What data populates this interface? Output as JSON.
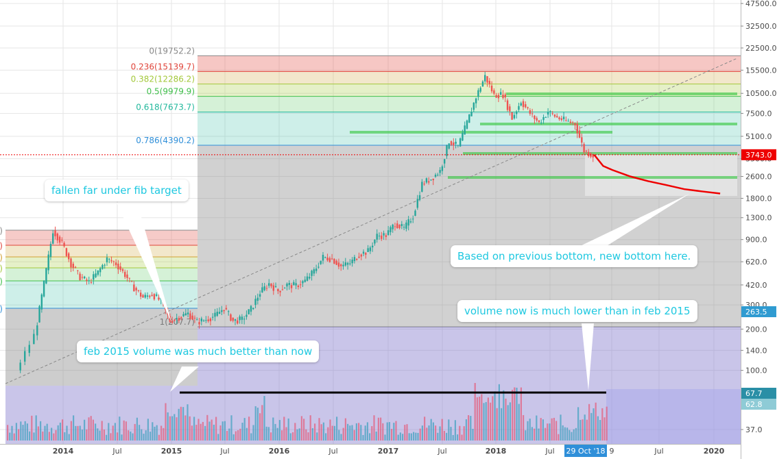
{
  "chart_data": {
    "type": "candlestick",
    "scale": "log",
    "x_ticks": [
      "2014",
      "Jul",
      "2015",
      "Jul",
      "2016",
      "Jul",
      "2017",
      "Jul",
      "2018",
      "Jul",
      "9",
      "Jul",
      "2020"
    ],
    "y_ticks": [
      "47500.0",
      "32500.0",
      "22500.0",
      "15500.0",
      "10500.0",
      "7500.0",
      "5100.0",
      "3500.0",
      "2600.0",
      "1800.0",
      "1300.0",
      "900.0",
      "620.0",
      "420.0",
      "300.0",
      "200.0",
      "140.0",
      "100.0",
      "37.0"
    ],
    "y_tick_values": [
      47500,
      32500,
      22500,
      15500,
      10500,
      7500,
      5100,
      3500,
      2600,
      1800,
      1300,
      900,
      620,
      420,
      300,
      200,
      140,
      100,
      37
    ],
    "last_price_label": "3743.0",
    "last_price": 3743,
    "volume_labels": [
      {
        "text": "263.5",
        "value": 263.5,
        "color": "#2f9bd1"
      },
      {
        "text": "67.7",
        "value": 67.7,
        "color": "#2a8fa6"
      },
      {
        "text": "62.8",
        "value": 62.8,
        "color": "#8ecbd6"
      }
    ],
    "date_badge": "29 Oct '18",
    "fib_levels": [
      {
        "label": "0(19752.2)",
        "value": 19752.2,
        "color": "#888888"
      },
      {
        "label": "0.236(15139.7)",
        "value": 15139.7,
        "color": "#e0443a"
      },
      {
        "label": "0.382(12286.2)",
        "value": 12286.2,
        "color": "#a3c83a"
      },
      {
        "label": "0.5(9979.9)",
        "value": 9979.9,
        "color": "#3fbf4a"
      },
      {
        "label": "0.618(7673.7)",
        "value": 7673.7,
        "color": "#22b89c"
      },
      {
        "label": "0.786(4390.2)",
        "value": 4390.2,
        "color": "#2f8fd9"
      },
      {
        "label": "1(207.7)",
        "value": 207.7,
        "color": "#777777"
      }
    ],
    "small_fib_labels": [
      "0)",
      "0)",
      "0)",
      "0)",
      "0)",
      "0)"
    ],
    "annotations": [
      "fallen far under fib target",
      "feb 2015 volume was much better than now",
      "Based on previous bottom, new bottom here.",
      "volume now is much lower than in feb 2015"
    ],
    "price_path": [
      [
        "2013-08",
        100
      ],
      [
        "2013-10",
        180
      ],
      [
        "2013-11",
        430
      ],
      [
        "2013-12",
        1050
      ],
      [
        "2014-01",
        850
      ],
      [
        "2014-02",
        600
      ],
      [
        "2014-03",
        480
      ],
      [
        "2014-04",
        440
      ],
      [
        "2014-05",
        520
      ],
      [
        "2014-06",
        650
      ],
      [
        "2014-07",
        600
      ],
      [
        "2014-08",
        500
      ],
      [
        "2014-09",
        400
      ],
      [
        "2014-10",
        340
      ],
      [
        "2014-11",
        360
      ],
      [
        "2014-12",
        320
      ],
      [
        "2015-01",
        230
      ],
      [
        "2015-02",
        245
      ],
      [
        "2015-03",
        260
      ],
      [
        "2015-04",
        225
      ],
      [
        "2015-05",
        235
      ],
      [
        "2015-06",
        250
      ],
      [
        "2015-07",
        285
      ],
      [
        "2015-08",
        230
      ],
      [
        "2015-09",
        235
      ],
      [
        "2015-10",
        280
      ],
      [
        "2015-11",
        370
      ],
      [
        "2015-12",
        430
      ],
      [
        "2016-01",
        380
      ],
      [
        "2016-02",
        420
      ],
      [
        "2016-03",
        415
      ],
      [
        "2016-04",
        450
      ],
      [
        "2016-05",
        530
      ],
      [
        "2016-06",
        670
      ],
      [
        "2016-07",
        650
      ],
      [
        "2016-08",
        575
      ],
      [
        "2016-09",
        605
      ],
      [
        "2016-10",
        700
      ],
      [
        "2016-11",
        740
      ],
      [
        "2016-12",
        960
      ],
      [
        "2017-01",
        970
      ],
      [
        "2017-02",
        1180
      ],
      [
        "2017-03",
        1080
      ],
      [
        "2017-04",
        1340
      ],
      [
        "2017-05",
        2300
      ],
      [
        "2017-06",
        2500
      ],
      [
        "2017-07",
        2850
      ],
      [
        "2017-08",
        4700
      ],
      [
        "2017-09",
        4300
      ],
      [
        "2017-10",
        6400
      ],
      [
        "2017-11",
        9900
      ],
      [
        "2017-12",
        14000
      ],
      [
        "2018-01",
        10200
      ],
      [
        "2018-02",
        10300
      ],
      [
        "2018-03",
        6900
      ],
      [
        "2018-04",
        9200
      ],
      [
        "2018-05",
        7500
      ],
      [
        "2018-06",
        6400
      ],
      [
        "2018-07",
        7700
      ],
      [
        "2018-08",
        7000
      ],
      [
        "2018-09",
        6600
      ],
      [
        "2018-10",
        6300
      ],
      [
        "2018-11",
        4000
      ],
      [
        "2018-12",
        3700
      ]
    ],
    "projection": [
      [
        "2018-12",
        3743
      ],
      [
        "2019-01",
        3100
      ],
      [
        "2019-02",
        2900
      ],
      [
        "2019-04",
        2600
      ],
      [
        "2019-06",
        2400
      ],
      [
        "2019-08",
        2250
      ],
      [
        "2019-10",
        2100
      ],
      [
        "2019-12",
        2020
      ],
      [
        "2020-02",
        1950
      ]
    ]
  }
}
